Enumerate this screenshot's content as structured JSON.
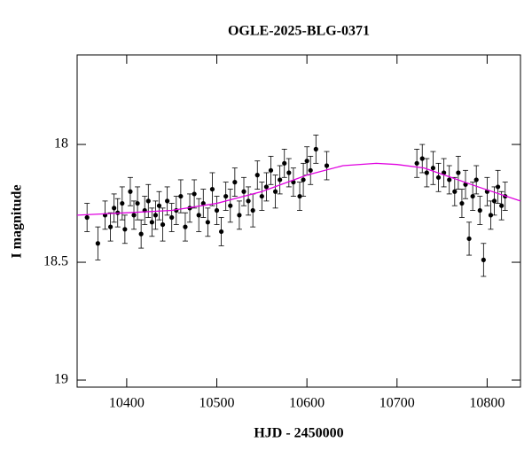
{
  "chart_data": {
    "type": "scatter",
    "title": "OGLE-2025-BLG-0371",
    "x_label": "HJD - 2450000",
    "y_label": "I magnitude",
    "xlim": [
      10345,
      10837
    ],
    "ylim": [
      19.03,
      17.62
    ],
    "xticks": [
      10400,
      10500,
      10600,
      10700,
      10800
    ],
    "yticks": [
      18,
      {
        "value": 18.5,
        "label": "18.5"
      },
      19
    ],
    "points": {
      "color": "#000000",
      "x": [
        10356,
        10368,
        10376,
        10382,
        10386,
        10390,
        10395,
        10398,
        10404,
        10408,
        10412,
        10416,
        10420,
        10424,
        10428,
        10432,
        10436,
        10440,
        10445,
        10450,
        10455,
        10460,
        10465,
        10470,
        10475,
        10480,
        10485,
        10490,
        10495,
        10500,
        10505,
        10510,
        10515,
        10520,
        10525,
        10530,
        10535,
        10540,
        10545,
        10550,
        10555,
        10560,
        10565,
        10570,
        10575,
        10580,
        10585,
        10592,
        10596,
        10600,
        10604,
        10610,
        10622,
        10722,
        10728,
        10733,
        10740,
        10746,
        10752,
        10758,
        10764,
        10768,
        10772,
        10776,
        10780,
        10784,
        10788,
        10792,
        10796,
        10800,
        10804,
        10808,
        10812,
        10816,
        10820
      ],
      "values": [
        18.31,
        18.42,
        18.3,
        18.35,
        18.27,
        18.29,
        18.25,
        18.36,
        18.2,
        18.3,
        18.25,
        18.38,
        18.28,
        18.24,
        18.33,
        18.3,
        18.26,
        18.34,
        18.24,
        18.31,
        18.28,
        18.22,
        18.35,
        18.27,
        18.21,
        18.3,
        18.25,
        18.33,
        18.19,
        18.28,
        18.37,
        18.22,
        18.26,
        18.16,
        18.3,
        18.2,
        18.24,
        18.28,
        18.13,
        18.22,
        18.18,
        18.11,
        18.2,
        18.15,
        18.08,
        18.12,
        18.16,
        18.22,
        18.15,
        18.07,
        18.11,
        18.02,
        18.09,
        18.08,
        18.06,
        18.12,
        18.1,
        18.14,
        18.12,
        18.15,
        18.2,
        18.12,
        18.25,
        18.17,
        18.4,
        18.22,
        18.15,
        18.28,
        18.49,
        18.2,
        18.3,
        18.24,
        18.18,
        18.26,
        18.22
      ],
      "errors": [
        0.06,
        0.07,
        0.06,
        0.06,
        0.06,
        0.06,
        0.07,
        0.06,
        0.06,
        0.06,
        0.07,
        0.06,
        0.06,
        0.07,
        0.06,
        0.06,
        0.06,
        0.07,
        0.06,
        0.06,
        0.06,
        0.07,
        0.06,
        0.06,
        0.06,
        0.07,
        0.06,
        0.06,
        0.07,
        0.06,
        0.06,
        0.06,
        0.07,
        0.06,
        0.06,
        0.06,
        0.06,
        0.07,
        0.06,
        0.06,
        0.06,
        0.06,
        0.07,
        0.06,
        0.06,
        0.06,
        0.06,
        0.06,
        0.07,
        0.06,
        0.06,
        0.06,
        0.06,
        0.06,
        0.06,
        0.06,
        0.07,
        0.06,
        0.06,
        0.06,
        0.06,
        0.07,
        0.06,
        0.06,
        0.07,
        0.06,
        0.06,
        0.06,
        0.07,
        0.06,
        0.06,
        0.06,
        0.07,
        0.06,
        0.06
      ]
    },
    "model": {
      "color": "#e000e0",
      "x": [
        10345,
        10400,
        10450,
        10500,
        10550,
        10600,
        10640,
        10677,
        10700,
        10730,
        10760,
        10790,
        10837
      ],
      "values": [
        18.3,
        18.29,
        18.28,
        18.25,
        18.2,
        18.13,
        18.09,
        18.08,
        18.085,
        18.1,
        18.14,
        18.18,
        18.24
      ]
    }
  }
}
